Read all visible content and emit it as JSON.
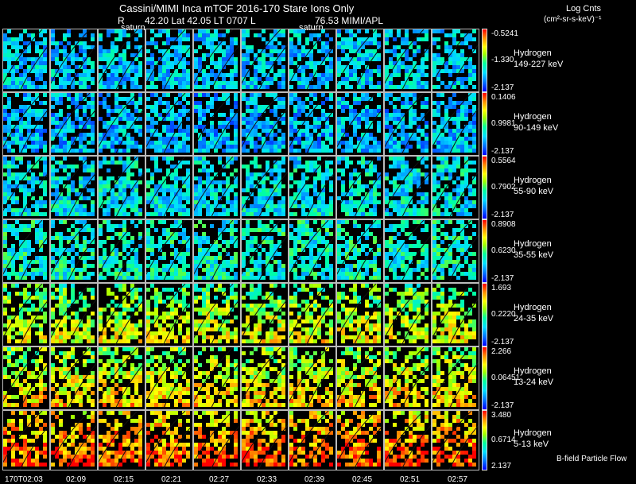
{
  "header": {
    "title": "Cassini/MIMI Inca mTOF  2016-170    Stare    Ions Only",
    "subtitle": {
      "r_label": "R",
      "values": "42.20 Lat 42.05 LT 0707 L",
      "l_value": "76.53  MIMI/APL",
      "saturn_labels": [
        "saturn",
        "saturn"
      ]
    },
    "colorbar_title": "Log Cnts",
    "colorbar_units": "(cm²-sr-s-keV)⁻¹"
  },
  "panels": [
    {
      "species": "Hydrogen",
      "energy": "149-227 keV",
      "max": "-0.5241",
      "mid": "-1.330",
      "min": "-2.137",
      "level": 0.28
    },
    {
      "species": "Hydrogen",
      "energy": "90-149 keV",
      "max": "0.1406",
      "mid": "0.9981",
      "min": "-2.137",
      "level": 0.25
    },
    {
      "species": "Hydrogen",
      "energy": "55-90 keV",
      "max": "0.5564",
      "mid": "0.7902",
      "min": "-2.137",
      "level": 0.33
    },
    {
      "species": "Hydrogen",
      "energy": "35-55 keV",
      "max": "0.8908",
      "mid": "0.6230",
      "min": "-2.137",
      "level": 0.38
    },
    {
      "species": "Hydrogen",
      "energy": "24-35 keV",
      "max": "1.693",
      "mid": "0.2220",
      "min": "-2.137",
      "level": 0.48
    },
    {
      "species": "Hydrogen",
      "energy": "13-24 keV",
      "max": "2.266",
      "mid": "0.06451",
      "min": "-2.137",
      "level": 0.55
    },
    {
      "species": "Hydrogen",
      "energy": "5-13 keV",
      "max": "3.480",
      "mid": "0.6714",
      "min": "2.137",
      "level": 0.72
    }
  ],
  "time_ticks": [
    "170T02:03",
    "02:09",
    "02:15",
    "02:21",
    "02:27",
    "02:33",
    "02:39",
    "02:45",
    "02:51",
    "02:57"
  ],
  "footer_label": "B-field Particle Flow",
  "colors": {
    "background": "#000000",
    "low": "#0000ff",
    "high": "#ff0000"
  }
}
